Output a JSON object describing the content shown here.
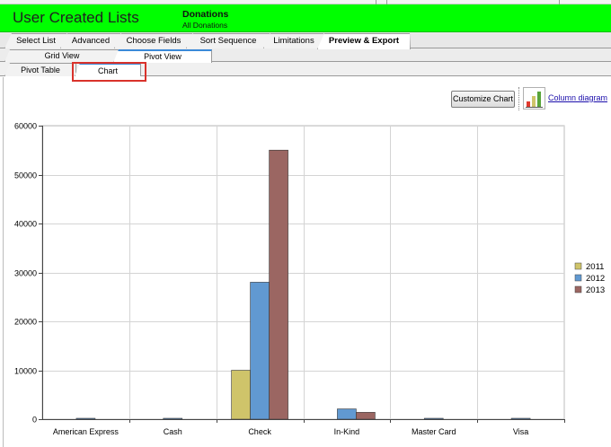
{
  "header": {
    "title": "User Created Lists",
    "list_name": "Donations",
    "list_subtitle": "All Donations",
    "color": "#00ff00"
  },
  "tabs_main": [
    {
      "label": "Select List",
      "active": false
    },
    {
      "label": "Advanced",
      "active": false
    },
    {
      "label": "Choose Fields",
      "active": false
    },
    {
      "label": "Sort Sequence",
      "active": false
    },
    {
      "label": "Limitations",
      "active": false
    },
    {
      "label": "Preview & Export",
      "active": true
    }
  ],
  "tabs_view": [
    {
      "label": "Grid View",
      "active": false
    },
    {
      "label": "Pivot View",
      "active": true
    }
  ],
  "tabs_pivot": [
    {
      "label": "Pivot Table",
      "active": false
    },
    {
      "label": "Chart",
      "active": true
    }
  ],
  "toolbar": {
    "customize_label": "Customize Chart",
    "chart_type_link": "Column diagram",
    "icon": "column-chart-icon"
  },
  "highlight_color": "#d9322b",
  "chart_data": {
    "type": "bar",
    "categories": [
      "American Express",
      "Cash",
      "Check",
      "In-Kind",
      "Master Card",
      "Visa"
    ],
    "series": [
      {
        "name": "2011",
        "color": "#cfc46a",
        "values": [
          0,
          0,
          10000,
          0,
          0,
          0
        ]
      },
      {
        "name": "2012",
        "color": "#6199d1",
        "values": [
          100,
          50,
          28000,
          2100,
          100,
          50
        ]
      },
      {
        "name": "2013",
        "color": "#9b6662",
        "values": [
          0,
          0,
          55000,
          1400,
          0,
          0
        ]
      }
    ],
    "yticks": [
      0,
      10000,
      20000,
      30000,
      40000,
      50000,
      60000
    ],
    "ylim": [
      0,
      60000
    ],
    "grid": true,
    "legend": "right"
  }
}
